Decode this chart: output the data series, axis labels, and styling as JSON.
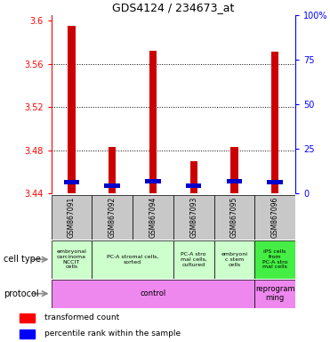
{
  "title": "GDS4124 / 234673_at",
  "samples": [
    "GSM867091",
    "GSM867092",
    "GSM867094",
    "GSM867093",
    "GSM867095",
    "GSM867096"
  ],
  "transformed_count": [
    3.595,
    3.483,
    3.572,
    3.47,
    3.483,
    3.571
  ],
  "percentile_rank_val": [
    3.45,
    3.447,
    3.451,
    3.447,
    3.451,
    3.45
  ],
  "bar_bottom": 3.44,
  "ylim_left": [
    3.44,
    3.605
  ],
  "ylim_right": [
    0,
    100
  ],
  "yticks_left": [
    3.44,
    3.48,
    3.52,
    3.56,
    3.6
  ],
  "yticks_left_labels": [
    "3.44",
    "3.48",
    "3.52",
    "3.56",
    "3.6"
  ],
  "yticks_right": [
    0,
    25,
    50,
    75,
    100
  ],
  "yticks_right_labels": [
    "0",
    "25",
    "50",
    "75",
    "100%"
  ],
  "red_color": "#cc0000",
  "blue_color": "#0000cc",
  "sample_bg_color": "#c8c8c8",
  "cell_type_color_light": "#ccffcc",
  "cell_type_color_bright": "#44ee44",
  "protocol_color": "#ee88ee",
  "cell_groups": [
    {
      "start": 0,
      "end": 1,
      "color": "#ccffcc",
      "text": "embryonal\ncarcinoma\nNCCIT\ncells"
    },
    {
      "start": 1,
      "end": 3,
      "color": "#ccffcc",
      "text": "PC-A stromal cells,\nsorted"
    },
    {
      "start": 3,
      "end": 4,
      "color": "#ccffcc",
      "text": "PC-A stro\nmal cells,\ncultured"
    },
    {
      "start": 4,
      "end": 5,
      "color": "#ccffcc",
      "text": "embryoni\nc stem\ncells"
    },
    {
      "start": 5,
      "end": 6,
      "color": "#44ee44",
      "text": "iPS cells\nfrom\nPC-A stro\nmal cells"
    }
  ],
  "prot_groups": [
    {
      "start": 0,
      "end": 5,
      "color": "#ee88ee",
      "text": "control"
    },
    {
      "start": 5,
      "end": 6,
      "color": "#ee88ee",
      "text": "reprogram\nming"
    }
  ]
}
